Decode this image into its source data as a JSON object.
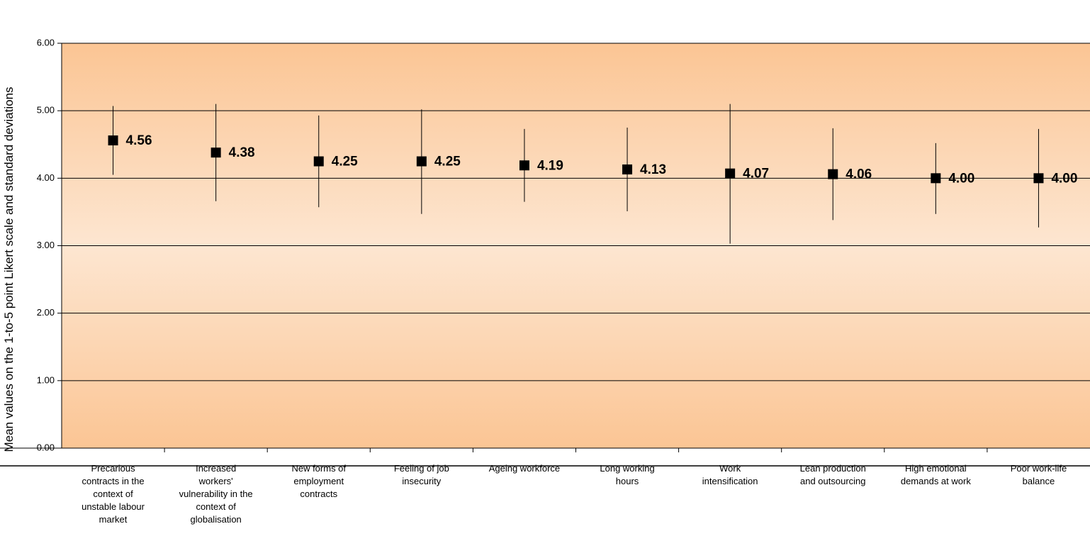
{
  "chart_data": {
    "type": "scatter",
    "ylabel": "Mean values on the 1-to-5 point Likert scale and standard deviations",
    "ylim": [
      0,
      6
    ],
    "yticks": [
      "0.00",
      "1.00",
      "2.00",
      "3.00",
      "4.00",
      "5.00",
      "6.00"
    ],
    "grid": true,
    "marker": "square",
    "plot_gradient": [
      "#fbc594",
      "#fde6d1",
      "#fbc594"
    ],
    "categories": [
      [
        "Precarious",
        "contracts in the",
        "context of",
        "unstable labour",
        "market"
      ],
      [
        "Increased",
        "workers'",
        "vulnerability in the",
        "context of",
        "globalisation"
      ],
      [
        "New forms of",
        "employment",
        "contracts"
      ],
      [
        "Feeling of job",
        "insecurity"
      ],
      [
        "Ageing workforce"
      ],
      [
        "Long working",
        "hours"
      ],
      [
        "Work",
        "intensification"
      ],
      [
        "Lean production",
        "and outsourcing"
      ],
      [
        "High emotional",
        "demands at work"
      ],
      [
        "Poor work-life",
        "balance"
      ]
    ],
    "values": [
      4.56,
      4.38,
      4.25,
      4.25,
      4.19,
      4.13,
      4.07,
      4.06,
      4.0,
      4.0
    ],
    "labels": [
      "4.56",
      "4.38",
      "4.25",
      "4.25",
      "4.19",
      "4.13",
      "4.07",
      "4.06",
      "4.00",
      "4.00"
    ],
    "error_low": [
      4.05,
      3.66,
      3.57,
      3.47,
      3.65,
      3.51,
      3.03,
      3.38,
      3.47,
      3.27
    ],
    "error_high": [
      5.07,
      5.1,
      4.93,
      5.02,
      4.73,
      4.75,
      5.1,
      4.74,
      4.52,
      4.73
    ]
  }
}
